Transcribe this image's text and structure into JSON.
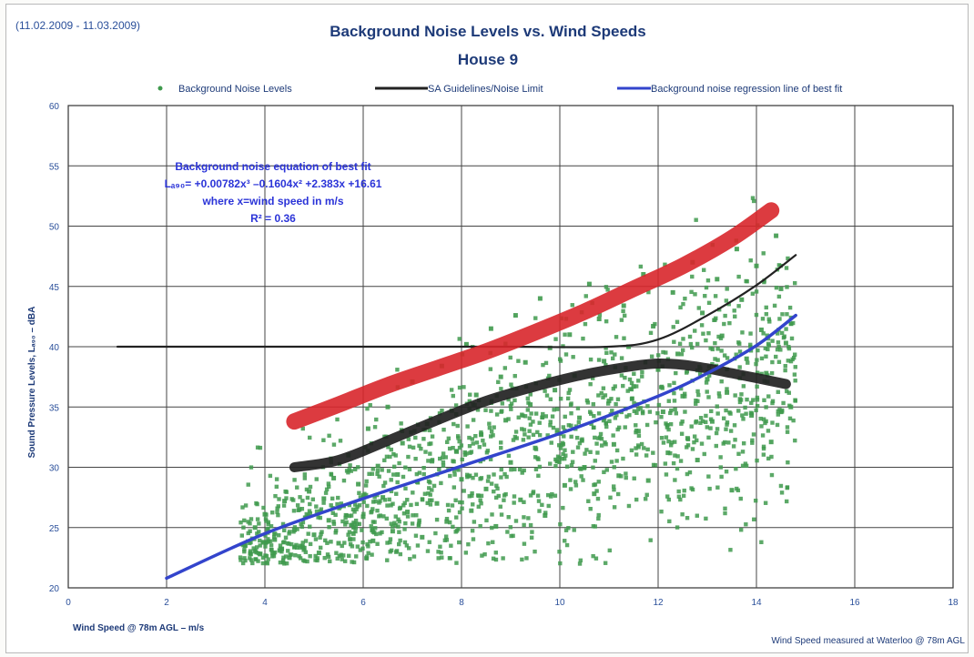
{
  "header": {
    "date_range": "(11.02.2009 - 11.03.2009)",
    "title": "Background Noise Levels vs. Wind Speeds",
    "subtitle": "House 9"
  },
  "legend": [
    {
      "label": "Background Noise Levels",
      "color": "#3f9a4d",
      "marker": "dot"
    },
    {
      "label": "SA Guidelines/Noise Limit",
      "color": "#222222",
      "marker": "line"
    },
    {
      "label": "Background noise regression line of best fit",
      "color": "#3344cc",
      "marker": "line"
    }
  ],
  "annotation": {
    "line1": "Background noise equation of best fit",
    "line2": "Lₐ₉₀= +0.00782x³ –0.1604x² +2.383x +16.61",
    "line3": "where x=wind speed in m/s",
    "line4": "R² = 0.36"
  },
  "axes": {
    "xlabel": "Wind Speed @ 78m AGL – m/s",
    "ylabel": "Sound Pressure Levels, Lₐ₉₀ – dBA",
    "footnote": "Wind Speed measured at Waterloo @ 78m AGL"
  },
  "chart_data": {
    "type": "scatter",
    "title": "Background Noise Levels vs. Wind Speeds",
    "subtitle": "House 9",
    "xlabel": "Wind Speed @ 78m AGL – m/s",
    "ylabel": "Sound Pressure Levels, Lₐ₉₀ – dBA",
    "xlim": [
      0,
      18
    ],
    "ylim": [
      20,
      60
    ],
    "x_ticks": [
      0,
      2,
      4,
      6,
      8,
      10,
      12,
      14,
      16,
      18
    ],
    "y_ticks": [
      20,
      25,
      30,
      35,
      40,
      45,
      50,
      55,
      60
    ],
    "grid": true,
    "legend_position": "top",
    "scatter_points": [
      [
        3.6,
        23.5
      ],
      [
        3.8,
        25.0
      ],
      [
        3.9,
        22.8
      ],
      [
        4.0,
        26.1
      ],
      [
        4.2,
        24.0
      ],
      [
        4.3,
        23.1
      ],
      [
        4.4,
        27.2
      ],
      [
        4.5,
        22.5
      ],
      [
        4.6,
        24.8
      ],
      [
        4.7,
        26.5
      ],
      [
        4.8,
        23.3
      ],
      [
        4.9,
        28.0
      ],
      [
        5.0,
        24.4
      ],
      [
        5.1,
        22.9
      ],
      [
        5.2,
        27.4
      ],
      [
        5.3,
        25.6
      ],
      [
        5.4,
        29.1
      ],
      [
        5.5,
        23.7
      ],
      [
        5.6,
        26.8
      ],
      [
        5.7,
        31.0
      ],
      [
        5.8,
        24.5
      ],
      [
        5.9,
        28.6
      ],
      [
        6.0,
        25.9
      ],
      [
        6.1,
        33.2
      ],
      [
        6.2,
        23.9
      ],
      [
        6.3,
        30.1
      ],
      [
        6.4,
        27.5
      ],
      [
        6.5,
        35.0
      ],
      [
        6.6,
        24.7
      ],
      [
        6.7,
        29.4
      ],
      [
        6.8,
        32.0
      ],
      [
        6.9,
        26.3
      ],
      [
        7.0,
        37.1
      ],
      [
        7.1,
        28.8
      ],
      [
        7.2,
        24.2
      ],
      [
        7.3,
        33.6
      ],
      [
        7.4,
        30.5
      ],
      [
        7.5,
        27.0
      ],
      [
        7.6,
        38.4
      ],
      [
        7.7,
        25.5
      ],
      [
        7.8,
        34.7
      ],
      [
        7.9,
        31.3
      ],
      [
        8.0,
        29.0
      ],
      [
        8.1,
        40.2
      ],
      [
        8.2,
        26.4
      ],
      [
        8.3,
        36.0
      ],
      [
        8.4,
        32.7
      ],
      [
        8.5,
        28.2
      ],
      [
        8.6,
        41.5
      ],
      [
        8.7,
        25.1
      ],
      [
        8.8,
        37.5
      ],
      [
        8.9,
        33.9
      ],
      [
        9.0,
        30.4
      ],
      [
        9.1,
        42.6
      ],
      [
        9.2,
        27.3
      ],
      [
        9.3,
        38.7
      ],
      [
        9.4,
        35.2
      ],
      [
        9.5,
        31.6
      ],
      [
        9.6,
        44.0
      ],
      [
        9.7,
        26.0
      ],
      [
        9.8,
        39.9
      ],
      [
        9.9,
        36.4
      ],
      [
        10.0,
        32.8
      ],
      [
        10.1,
        28.5
      ],
      [
        10.2,
        41.0
      ],
      [
        10.3,
        37.6
      ],
      [
        10.4,
        34.1
      ],
      [
        10.5,
        30.0
      ],
      [
        10.6,
        45.2
      ],
      [
        10.7,
        27.8
      ],
      [
        10.8,
        42.3
      ],
      [
        10.9,
        38.8
      ],
      [
        11.0,
        35.5
      ],
      [
        11.1,
        31.9
      ],
      [
        11.2,
        29.3
      ],
      [
        11.3,
        43.4
      ],
      [
        11.4,
        40.0
      ],
      [
        11.5,
        36.7
      ],
      [
        11.6,
        33.0
      ],
      [
        11.7,
        46.0
      ],
      [
        11.8,
        28.9
      ],
      [
        11.9,
        41.7
      ],
      [
        12.0,
        38.1
      ],
      [
        12.1,
        34.6
      ],
      [
        12.2,
        31.2
      ],
      [
        12.3,
        44.5
      ],
      [
        12.4,
        39.4
      ],
      [
        12.5,
        35.9
      ],
      [
        12.6,
        32.4
      ],
      [
        12.7,
        47.0
      ],
      [
        12.8,
        30.6
      ],
      [
        12.9,
        42.8
      ],
      [
        13.0,
        37.3
      ],
      [
        13.1,
        33.8
      ],
      [
        13.2,
        45.6
      ],
      [
        13.3,
        40.9
      ],
      [
        13.4,
        36.2
      ],
      [
        13.5,
        28.1
      ],
      [
        13.6,
        48.1
      ],
      [
        13.7,
        43.9
      ],
      [
        13.8,
        39.0
      ],
      [
        13.9,
        34.3
      ],
      [
        14.0,
        46.7
      ],
      [
        14.1,
        41.4
      ],
      [
        14.2,
        37.8
      ],
      [
        14.3,
        32.1
      ],
      [
        14.4,
        49.2
      ],
      [
        14.5,
        44.8
      ],
      [
        14.6,
        40.3
      ],
      [
        14.7,
        35.0
      ]
    ],
    "series": [
      {
        "name": "SA Guidelines/Noise Limit",
        "color": "#222222",
        "style": "thin",
        "x": [
          1.0,
          4.0,
          7.0,
          9.0,
          11.0,
          12.0,
          13.0,
          14.0,
          14.8
        ],
        "y": [
          40.0,
          40.0,
          40.0,
          40.0,
          40.0,
          40.6,
          42.6,
          45.1,
          47.6
        ]
      },
      {
        "name": "SA Guidelines/Noise Limit",
        "color": "#222222",
        "style": "thick",
        "x": [
          4.6,
          5.5,
          6.5,
          7.5,
          8.5,
          9.5,
          10.5,
          11.5,
          12.0,
          12.5,
          13.0,
          13.5,
          14.0,
          14.6
        ],
        "y": [
          30.0,
          30.6,
          32.2,
          33.9,
          35.5,
          36.7,
          37.7,
          38.4,
          38.6,
          38.5,
          38.2,
          37.8,
          37.4,
          36.9
        ]
      },
      {
        "name": "",
        "color": "#d8262b",
        "style": "heavy",
        "x": [
          4.6,
          5.5,
          6.5,
          7.5,
          8.5,
          9.5,
          10.5,
          11.5,
          12.5,
          13.5,
          14.3
        ],
        "y": [
          33.8,
          35.2,
          36.8,
          38.2,
          39.6,
          41.2,
          42.9,
          44.8,
          46.7,
          49.0,
          51.3
        ]
      },
      {
        "name": "Background noise regression line of best fit",
        "color": "#3344cc",
        "style": "regression",
        "x": [
          2,
          4,
          6,
          8,
          10,
          12,
          13,
          14,
          14.8
        ],
        "y": [
          20.8,
          24.5,
          27.4,
          30.1,
          32.8,
          35.9,
          37.8,
          40.1,
          42.6
        ]
      }
    ]
  }
}
